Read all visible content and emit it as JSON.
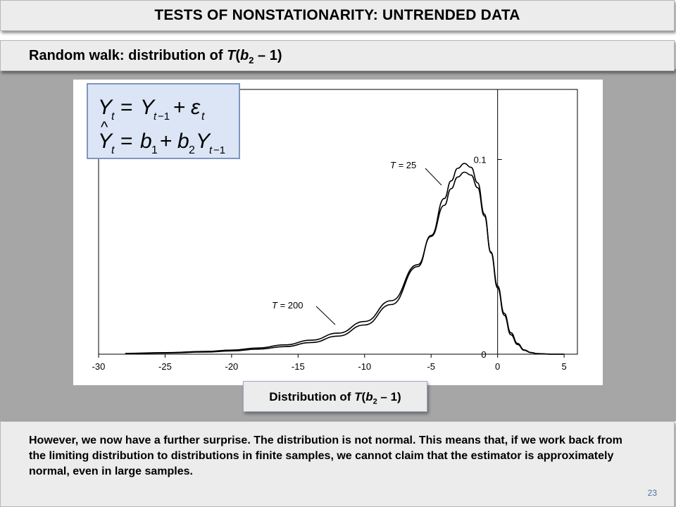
{
  "header": {
    "title": "TESTS OF NONSTATIONARITY: UNTRENDED DATA"
  },
  "subtitle": {
    "prefix": "Random walk: distribution of ",
    "T": "T",
    "open": "(",
    "b": "b",
    "sub": "2",
    "rest": " – 1)"
  },
  "equations": {
    "eq1": "Y_t = Y_{t-1} + ε_t",
    "eq2": "Ŷ_t = b_1 + b_2 Y_{t-1}"
  },
  "distribution_label": {
    "prefix": "Distribution of ",
    "T": "T",
    "open": "(",
    "b": "b",
    "sub": "2",
    "rest": " – 1)"
  },
  "body": {
    "text": "However, we now have a further surprise.  The distribution is not normal.  This means that, if we work back from the limiting distribution to distributions in finite samples, we cannot claim that the estimator is approximately normal, even in large samples."
  },
  "page_number": "23",
  "chart_data": {
    "type": "line",
    "x_ticks": [
      -30,
      -25,
      -20,
      -15,
      -10,
      -5,
      0,
      5
    ],
    "y_ticks": [
      0,
      0.1
    ],
    "y_tick_labels": [
      "0",
      "0.1"
    ],
    "xlim": [
      -30,
      6
    ],
    "ylim": [
      0,
      0.136
    ],
    "annotations": [
      "T = 25",
      "T = 200"
    ],
    "series": [
      {
        "name": "T = 25",
        "x": [
          -28,
          -25,
          -22,
          -20,
          -18,
          -16,
          -14,
          -12,
          -10,
          -8,
          -6,
          -5,
          -4,
          -3.5,
          -3,
          -2.5,
          -2,
          -1.5,
          -1,
          -0.5,
          0,
          0.5,
          1,
          1.5,
          2,
          2.5,
          3,
          4,
          5
        ],
        "y": [
          0.0003,
          0.0006,
          0.0011,
          0.0017,
          0.0026,
          0.0039,
          0.006,
          0.0093,
          0.015,
          0.0255,
          0.045,
          0.061,
          0.08,
          0.089,
          0.0955,
          0.098,
          0.096,
          0.088,
          0.072,
          0.052,
          0.034,
          0.02,
          0.01,
          0.005,
          0.002,
          0.0008,
          0.0003,
          0.0,
          0.0
        ]
      },
      {
        "name": "T = 200",
        "x": [
          -28,
          -25,
          -22,
          -20,
          -18,
          -16,
          -14,
          -12,
          -10,
          -8,
          -6,
          -5,
          -4,
          -3.5,
          -3,
          -2.5,
          -2,
          -1.5,
          -1,
          -0.5,
          0,
          0.5,
          1,
          1.5,
          2,
          2.5,
          3,
          4,
          5
        ],
        "y": [
          0.0004,
          0.0008,
          0.0014,
          0.0021,
          0.0032,
          0.0048,
          0.0072,
          0.0108,
          0.0168,
          0.0275,
          0.046,
          0.0605,
          0.0765,
          0.085,
          0.091,
          0.0935,
          0.092,
          0.0855,
          0.071,
          0.0525,
          0.035,
          0.021,
          0.011,
          0.0055,
          0.0022,
          0.0009,
          0.0003,
          0.0,
          0.0
        ]
      }
    ],
    "colors": {
      "lines": "#000000",
      "axes": "#000000"
    }
  }
}
